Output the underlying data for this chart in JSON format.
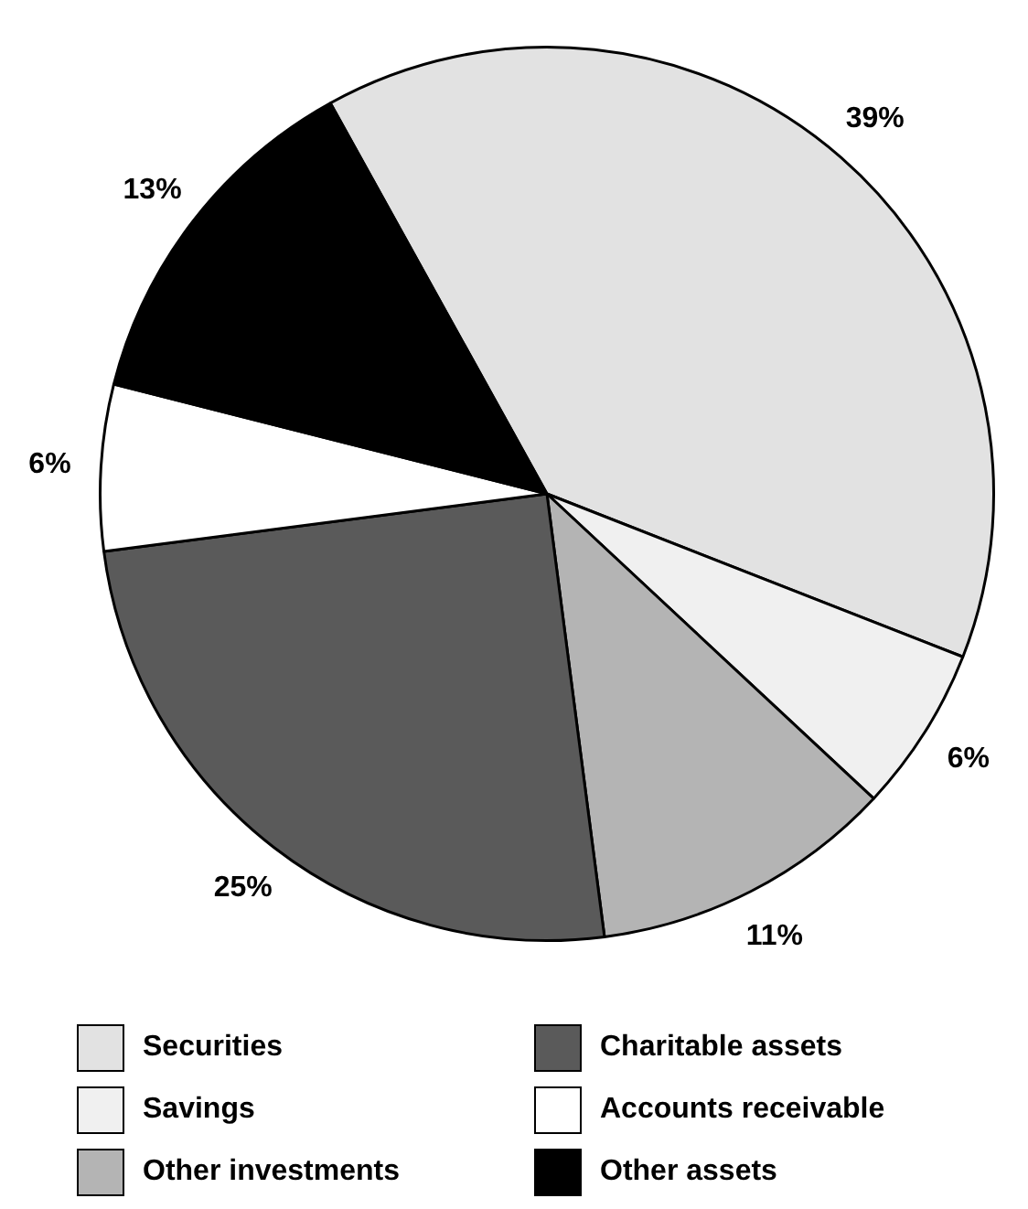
{
  "chart_data": {
    "type": "pie",
    "categories": [
      "Securities",
      "Savings",
      "Other investments",
      "Charitable assets",
      "Accounts receivable",
      "Other assets"
    ],
    "values": [
      39,
      6,
      11,
      25,
      6,
      13
    ],
    "colors": [
      "#e2e2e2",
      "#f0f0f0",
      "#b4b4b4",
      "#5a5a5a",
      "#ffffff",
      "#000000"
    ],
    "value_labels": [
      "39%",
      "6%",
      "11%",
      "25%",
      "6%",
      "13%"
    ],
    "legend": "bottom"
  }
}
